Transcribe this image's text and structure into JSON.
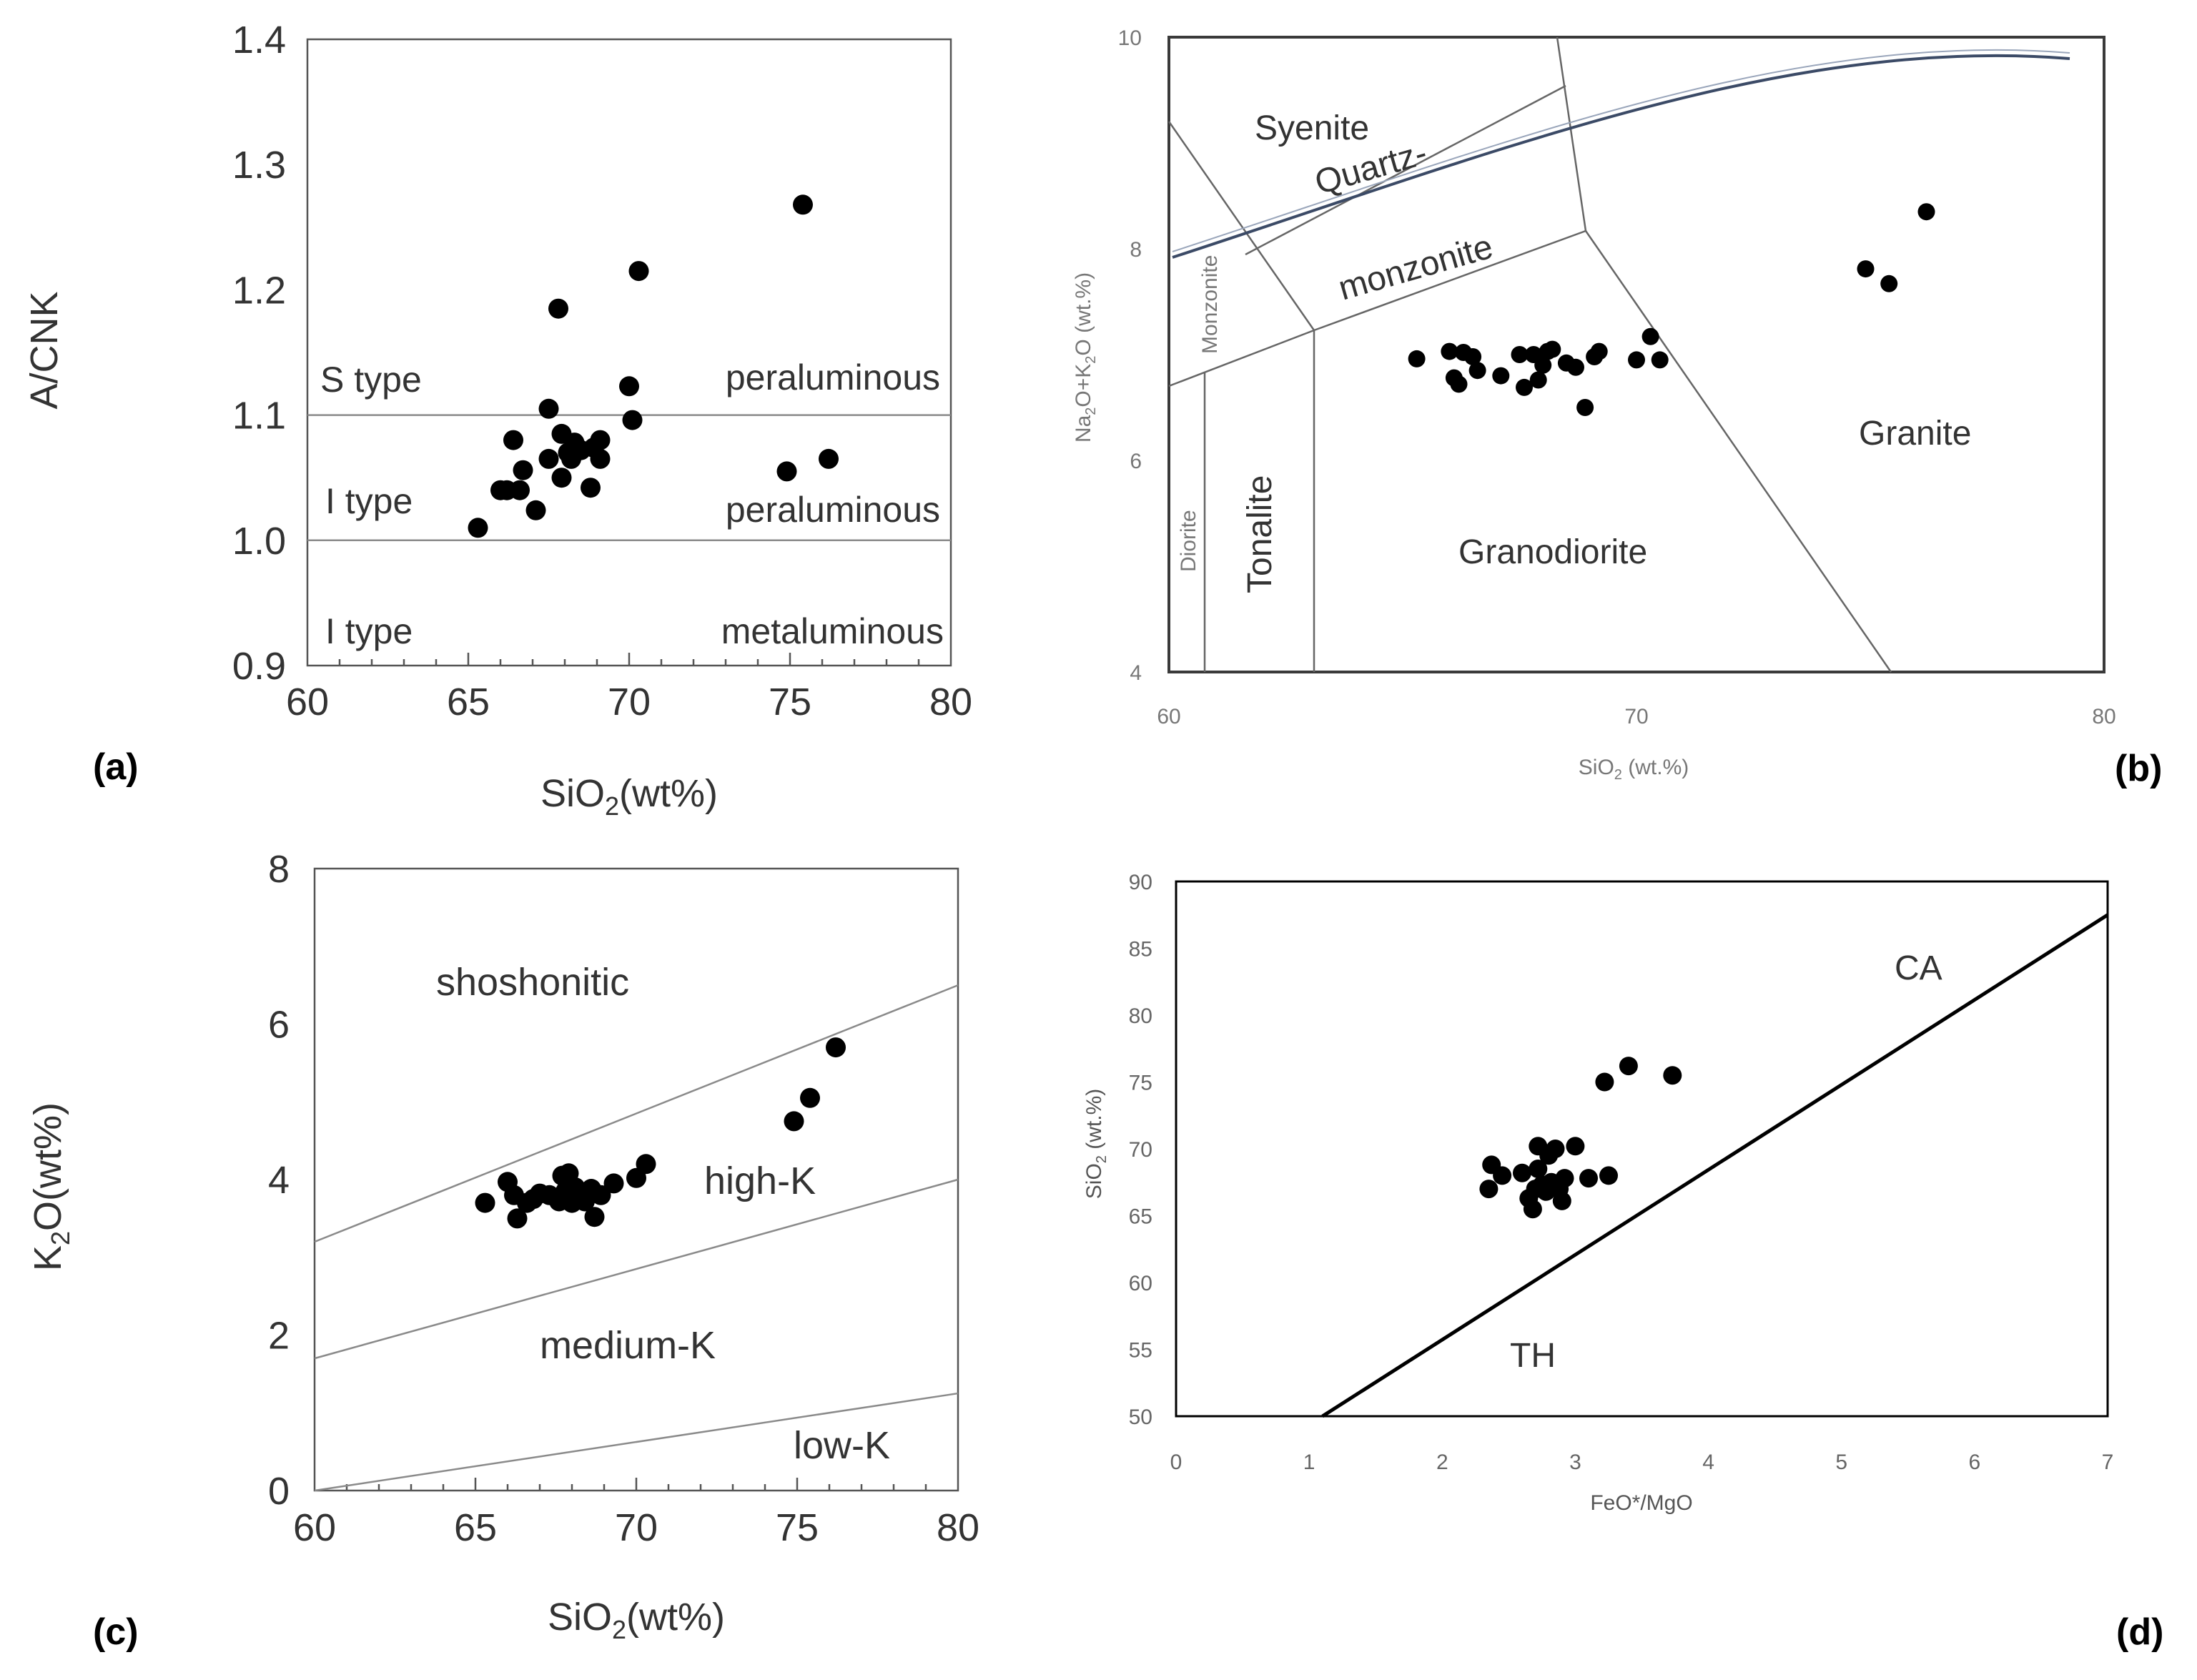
{
  "chart_data": [
    {
      "type": "scatter",
      "panel": "(a)",
      "title": "",
      "xlabel": "SiO2(wt%)",
      "ylabel": "A/CNK",
      "xlim": [
        60,
        80
      ],
      "ylim": [
        0.9,
        1.4
      ],
      "xticks": [
        "60",
        "65",
        "70",
        "75",
        "80"
      ],
      "yticks": [
        "0.9",
        "1.0",
        "1.1",
        "1.2",
        "1.3",
        "1.4"
      ],
      "boundaries": [
        1.0,
        1.1
      ],
      "region_labels": {
        "s_type": "S type",
        "peraluminous_upper": "peraluminous",
        "i_type_mid": "I type",
        "peraluminous_lower": "peraluminous",
        "i_type_low": "I type",
        "metaluminous": "metaluminous"
      },
      "x": [
        65.3,
        66.0,
        66.2,
        66.4,
        66.6,
        66.7,
        67.1,
        67.5,
        67.5,
        67.8,
        67.9,
        67.9,
        68.2,
        68.1,
        68.3,
        68.5,
        68.8,
        68.9,
        69.1,
        69.1,
        70.0,
        70.1,
        70.3,
        74.9,
        75.4,
        76.2
      ],
      "y": [
        1.01,
        1.04,
        1.04,
        1.08,
        1.04,
        1.056,
        1.024,
        1.105,
        1.065,
        1.185,
        1.085,
        1.05,
        1.065,
        1.07,
        1.078,
        1.072,
        1.042,
        1.074,
        1.08,
        1.065,
        1.123,
        1.096,
        1.215,
        1.055,
        1.268,
        1.065
      ]
    },
    {
      "type": "scatter",
      "panel": "(b)",
      "title": "",
      "xlabel": "SiO2 (wt.%)",
      "ylabel": "Na2O+K2O (wt.%)",
      "xlim": [
        60,
        80
      ],
      "ylim": [
        4,
        10
      ],
      "xticks": [
        "60",
        "70",
        "80"
      ],
      "yticks": [
        "4",
        "6",
        "8",
        "10"
      ],
      "region_labels": {
        "syenite": "Syenite",
        "quartz_monzonite_1": "Quartz-",
        "quartz_monzonite_2": "monzonite",
        "monzonite": "Monzonite",
        "diorite": "Diorite",
        "tonalite": "Tonalite",
        "granodiorite": "Granodiorite",
        "granite": "Granite"
      },
      "x": [
        65.3,
        66.0,
        66.1,
        66.3,
        66.2,
        66.6,
        66.5,
        67.1,
        67.5,
        67.6,
        67.8,
        67.9,
        68.1,
        68.2,
        68.0,
        68.5,
        68.7,
        68.9,
        69.1,
        69.2,
        70.0,
        70.3,
        70.5,
        74.9,
        75.4,
        76.2
      ],
      "y": [
        6.96,
        7.03,
        6.78,
        7.02,
        6.72,
        6.85,
        6.98,
        6.8,
        7.0,
        6.69,
        7.0,
        6.76,
        7.03,
        7.05,
        6.9,
        6.92,
        6.88,
        6.5,
        6.98,
        7.03,
        6.95,
        7.17,
        6.95,
        7.81,
        7.67,
        8.35
      ]
    },
    {
      "type": "scatter",
      "panel": "(c)",
      "title": "",
      "xlabel": "SiO2(wt%)",
      "ylabel": "K2O(wt%)",
      "xlim": [
        60,
        80
      ],
      "ylim": [
        0,
        8
      ],
      "xticks": [
        "60",
        "65",
        "70",
        "75",
        "80"
      ],
      "yticks": [
        "0",
        "2",
        "4",
        "6",
        "8"
      ],
      "boundaries": [
        [
          [
            60,
            3.2
          ],
          [
            80,
            6.5
          ]
        ],
        [
          [
            60,
            1.7
          ],
          [
            80,
            4.0
          ]
        ],
        [
          [
            60,
            0.0
          ],
          [
            80,
            1.25
          ]
        ]
      ],
      "region_labels": {
        "shoshonitic": "shoshonitic",
        "high_k": "high-K",
        "medium_k": "medium-K",
        "low_k": "low-K"
      },
      "x": [
        65.3,
        66.0,
        66.2,
        66.3,
        66.6,
        66.8,
        67.0,
        67.3,
        67.6,
        67.7,
        67.8,
        67.9,
        68.0,
        68.1,
        68.3,
        68.4,
        68.6,
        68.7,
        68.9,
        69.3,
        70.0,
        70.3,
        74.9,
        75.4,
        76.2
      ],
      "y": [
        3.7,
        3.97,
        3.8,
        3.5,
        3.7,
        3.75,
        3.82,
        3.8,
        3.72,
        4.05,
        3.85,
        4.08,
        3.7,
        3.9,
        3.8,
        3.72,
        3.88,
        3.52,
        3.8,
        3.95,
        4.02,
        4.2,
        4.75,
        5.05,
        5.7
      ]
    },
    {
      "type": "scatter",
      "panel": "(d)",
      "title": "",
      "xlabel": "FeO*/MgO",
      "ylabel": "SiO2 (wt.%)",
      "xlim": [
        0,
        7
      ],
      "ylim": [
        50,
        90
      ],
      "xticks": [
        "0",
        "1",
        "2",
        "3",
        "4",
        "5",
        "6",
        "7"
      ],
      "yticks": [
        "50",
        "55",
        "60",
        "65",
        "70",
        "75",
        "80",
        "85",
        "90"
      ],
      "boundary": [
        [
          1.1,
          50
        ],
        [
          7.0,
          87.5
        ]
      ],
      "region_labels": {
        "ca": "CA",
        "th": "TH"
      },
      "x": [
        2.35,
        2.37,
        2.45,
        2.6,
        2.65,
        2.68,
        2.7,
        2.72,
        2.72,
        2.75,
        2.78,
        2.8,
        2.82,
        2.85,
        2.88,
        2.9,
        2.92,
        3.0,
        3.1,
        3.22,
        3.25,
        3.4,
        3.73
      ],
      "y": [
        67.0,
        68.8,
        68.0,
        68.2,
        66.3,
        65.5,
        67.0,
        70.2,
        68.5,
        67.3,
        66.8,
        69.5,
        67.5,
        70.0,
        67.0,
        66.1,
        67.8,
        70.2,
        67.8,
        75.0,
        68.0,
        76.2,
        75.5
      ]
    }
  ],
  "panels": {
    "a": {
      "label": "(a)",
      "xlabel_main": "SiO",
      "xlabel_sub": "2",
      "xlabel_rest": "(wt%)",
      "ylabel": "A/CNK"
    },
    "b": {
      "label": "(b)",
      "xlabel_main": "SiO",
      "xlabel_sub": "2",
      "xlabel_rest": " (wt.%)",
      "ylabel_p1": "Na",
      "ylabel_s1": "2",
      "ylabel_p2": "O+K",
      "ylabel_s2": "2",
      "ylabel_p3": "O (wt.%)"
    },
    "c": {
      "label": "(c)",
      "xlabel_main": "SiO",
      "xlabel_sub": "2",
      "xlabel_rest": "(wt%)",
      "ylabel_main": "K",
      "ylabel_sub": "2",
      "ylabel_rest": "O(wt%)"
    },
    "d": {
      "label": "(d)",
      "xlabel": "FeO*/MgO",
      "ylabel_main": "SiO",
      "ylabel_sub": "2",
      "ylabel_rest": " (wt.%)"
    }
  }
}
